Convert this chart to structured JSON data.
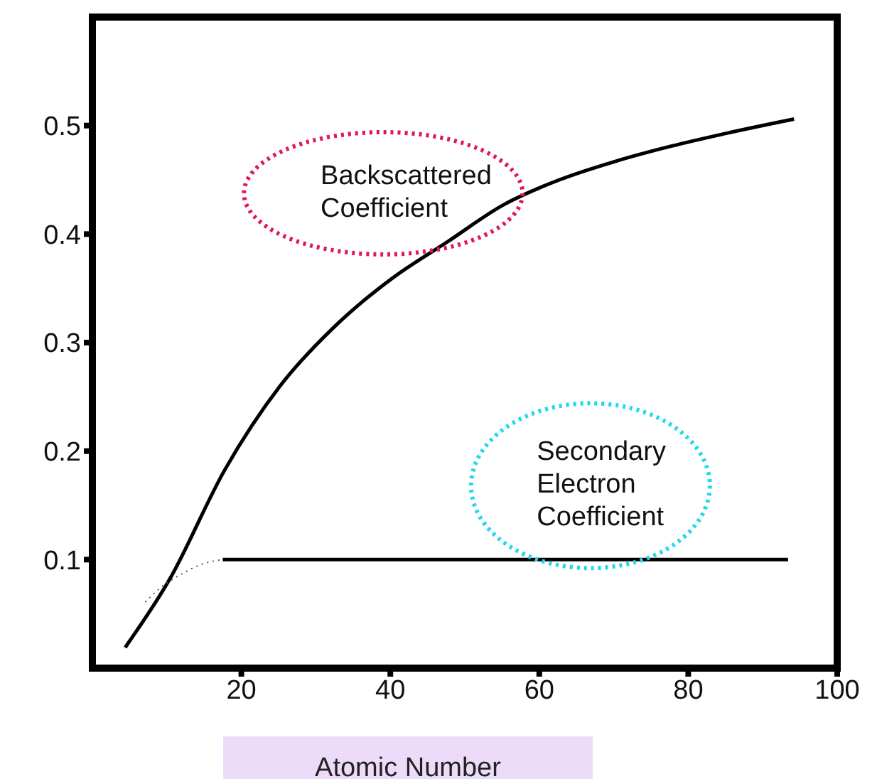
{
  "chart_data": {
    "type": "line",
    "xlabel": "Atomic Number",
    "xlim": [
      0,
      100
    ],
    "ylim": [
      0,
      0.6
    ],
    "xticks": [
      20,
      40,
      60,
      80,
      100
    ],
    "yticks": [
      0.1,
      0.2,
      0.3,
      0.4,
      0.5
    ],
    "series": [
      {
        "name": "Backscattered Coefficient",
        "color": "#000000",
        "line_style": "solid",
        "x": [
          4.4,
          10.3,
          17.8,
          25.2,
          32.7,
          40.2,
          47.7,
          55.2,
          62.7,
          70.2,
          77.7,
          85.2,
          94.2
        ],
        "values": [
          0.019,
          0.081,
          0.183,
          0.26,
          0.316,
          0.359,
          0.393,
          0.427,
          0.45,
          0.467,
          0.481,
          0.493,
          0.506
        ]
      },
      {
        "color": "#555555",
        "line_style": "dotted",
        "x": [
          7.1,
          9.5,
          11.8,
          14.8,
          17.5
        ],
        "values": [
          0.061,
          0.076,
          0.086,
          0.096,
          0.1
        ]
      },
      {
        "name": "Secondary Electron Coefficient",
        "color": "#000000",
        "line_style": "solid",
        "x": [
          17.5,
          93.4
        ],
        "values": [
          0.1,
          0.1
        ]
      }
    ]
  }
}
